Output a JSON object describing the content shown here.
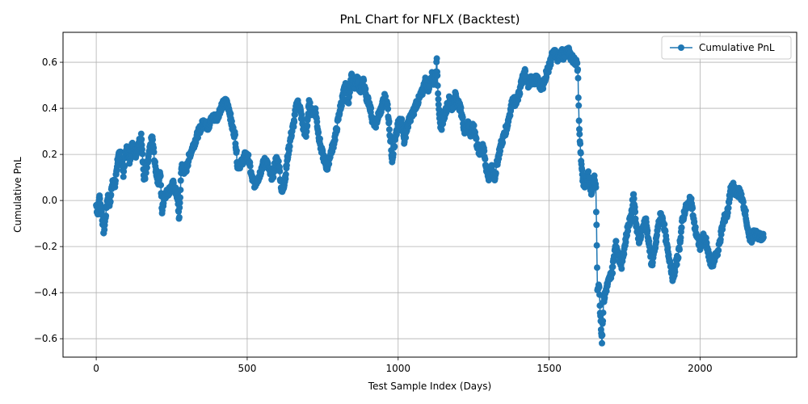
{
  "chart_data": {
    "type": "line",
    "title": "PnL Chart for NFLX (Backtest)",
    "xlabel": "Test Sample Index (Days)",
    "ylabel": "Cumulative PnL",
    "xlim": [
      -110,
      2320
    ],
    "ylim": [
      -0.68,
      0.73
    ],
    "xticks": [
      0,
      500,
      1000,
      1500,
      2000
    ],
    "yticks": [
      -0.6,
      -0.4,
      -0.2,
      0.0,
      0.2,
      0.4,
      0.6
    ],
    "xtick_labels": [
      "0",
      "500",
      "1000",
      "1500",
      "2000"
    ],
    "ytick_labels": [
      "−0.6",
      "−0.4",
      "−0.2",
      "0.0",
      "0.2",
      "0.4",
      "0.6"
    ],
    "grid": true,
    "legend_position": "top-right",
    "color": "#1f77b4",
    "marker": "circle",
    "series": [
      {
        "name": "Cumulative PnL",
        "anchors": [
          [
            0,
            -0.02
          ],
          [
            5,
            -0.06
          ],
          [
            10,
            0.02
          ],
          [
            18,
            -0.05
          ],
          [
            25,
            -0.14
          ],
          [
            30,
            -0.08
          ],
          [
            38,
            0.02
          ],
          [
            45,
            -0.02
          ],
          [
            55,
            0.1
          ],
          [
            62,
            0.06
          ],
          [
            70,
            0.17
          ],
          [
            80,
            0.21
          ],
          [
            90,
            0.12
          ],
          [
            100,
            0.23
          ],
          [
            110,
            0.17
          ],
          [
            120,
            0.25
          ],
          [
            130,
            0.2
          ],
          [
            140,
            0.24
          ],
          [
            150,
            0.28
          ],
          [
            158,
            0.09
          ],
          [
            165,
            0.12
          ],
          [
            175,
            0.2
          ],
          [
            185,
            0.28
          ],
          [
            195,
            0.15
          ],
          [
            205,
            0.08
          ],
          [
            212,
            0.12
          ],
          [
            218,
            -0.05
          ],
          [
            225,
            0.02
          ],
          [
            240,
            0.04
          ],
          [
            255,
            0.07
          ],
          [
            268,
            0.02
          ],
          [
            275,
            -0.08
          ],
          [
            282,
            0.15
          ],
          [
            295,
            0.12
          ],
          [
            310,
            0.2
          ],
          [
            325,
            0.25
          ],
          [
            340,
            0.3
          ],
          [
            355,
            0.34
          ],
          [
            370,
            0.32
          ],
          [
            385,
            0.36
          ],
          [
            400,
            0.36
          ],
          [
            415,
            0.41
          ],
          [
            430,
            0.43
          ],
          [
            440,
            0.4
          ],
          [
            450,
            0.32
          ],
          [
            460,
            0.28
          ],
          [
            468,
            0.15
          ],
          [
            480,
            0.16
          ],
          [
            495,
            0.2
          ],
          [
            505,
            0.18
          ],
          [
            515,
            0.1
          ],
          [
            525,
            0.07
          ],
          [
            538,
            0.1
          ],
          [
            550,
            0.15
          ],
          [
            562,
            0.18
          ],
          [
            575,
            0.12
          ],
          [
            585,
            0.1
          ],
          [
            595,
            0.18
          ],
          [
            605,
            0.16
          ],
          [
            615,
            0.03
          ],
          [
            625,
            0.09
          ],
          [
            635,
            0.2
          ],
          [
            645,
            0.28
          ],
          [
            655,
            0.34
          ],
          [
            665,
            0.43
          ],
          [
            675,
            0.4
          ],
          [
            685,
            0.32
          ],
          [
            695,
            0.28
          ],
          [
            705,
            0.42
          ],
          [
            715,
            0.38
          ],
          [
            725,
            0.4
          ],
          [
            735,
            0.3
          ],
          [
            745,
            0.22
          ],
          [
            755,
            0.18
          ],
          [
            765,
            0.14
          ],
          [
            775,
            0.2
          ],
          [
            785,
            0.24
          ],
          [
            795,
            0.3
          ],
          [
            805,
            0.38
          ],
          [
            815,
            0.44
          ],
          [
            825,
            0.5
          ],
          [
            835,
            0.42
          ],
          [
            845,
            0.55
          ],
          [
            855,
            0.48
          ],
          [
            865,
            0.53
          ],
          [
            875,
            0.47
          ],
          [
            885,
            0.52
          ],
          [
            895,
            0.45
          ],
          [
            905,
            0.42
          ],
          [
            915,
            0.35
          ],
          [
            925,
            0.33
          ],
          [
            935,
            0.37
          ],
          [
            945,
            0.4
          ],
          [
            955,
            0.45
          ],
          [
            965,
            0.41
          ],
          [
            972,
            0.3
          ],
          [
            980,
            0.18
          ],
          [
            990,
            0.26
          ],
          [
            1000,
            0.33
          ],
          [
            1010,
            0.36
          ],
          [
            1020,
            0.26
          ],
          [
            1030,
            0.32
          ],
          [
            1040,
            0.36
          ],
          [
            1050,
            0.38
          ],
          [
            1060,
            0.42
          ],
          [
            1070,
            0.44
          ],
          [
            1080,
            0.47
          ],
          [
            1090,
            0.52
          ],
          [
            1100,
            0.48
          ],
          [
            1110,
            0.55
          ],
          [
            1120,
            0.5
          ],
          [
            1128,
            0.6
          ],
          [
            1133,
            0.45
          ],
          [
            1140,
            0.3
          ],
          [
            1150,
            0.36
          ],
          [
            1160,
            0.4
          ],
          [
            1170,
            0.44
          ],
          [
            1180,
            0.4
          ],
          [
            1190,
            0.46
          ],
          [
            1200,
            0.42
          ],
          [
            1210,
            0.38
          ],
          [
            1220,
            0.3
          ],
          [
            1230,
            0.35
          ],
          [
            1240,
            0.28
          ],
          [
            1250,
            0.33
          ],
          [
            1260,
            0.25
          ],
          [
            1270,
            0.2
          ],
          [
            1280,
            0.25
          ],
          [
            1290,
            0.15
          ],
          [
            1300,
            0.1
          ],
          [
            1310,
            0.14
          ],
          [
            1320,
            0.1
          ],
          [
            1330,
            0.18
          ],
          [
            1340,
            0.24
          ],
          [
            1350,
            0.28
          ],
          [
            1360,
            0.32
          ],
          [
            1370,
            0.38
          ],
          [
            1380,
            0.44
          ],
          [
            1390,
            0.42
          ],
          [
            1400,
            0.46
          ],
          [
            1410,
            0.52
          ],
          [
            1420,
            0.56
          ],
          [
            1430,
            0.5
          ],
          [
            1440,
            0.53
          ],
          [
            1450,
            0.51
          ],
          [
            1460,
            0.54
          ],
          [
            1470,
            0.5
          ],
          [
            1480,
            0.49
          ],
          [
            1490,
            0.55
          ],
          [
            1500,
            0.58
          ],
          [
            1510,
            0.63
          ],
          [
            1520,
            0.64
          ],
          [
            1530,
            0.61
          ],
          [
            1540,
            0.65
          ],
          [
            1550,
            0.62
          ],
          [
            1560,
            0.66
          ],
          [
            1570,
            0.63
          ],
          [
            1580,
            0.61
          ],
          [
            1590,
            0.6
          ],
          [
            1595,
            0.57
          ],
          [
            1600,
            0.3
          ],
          [
            1605,
            0.2
          ],
          [
            1610,
            0.1
          ],
          [
            1615,
            0.05
          ],
          [
            1620,
            0.08
          ],
          [
            1630,
            0.12
          ],
          [
            1640,
            0.03
          ],
          [
            1650,
            0.1
          ],
          [
            1655,
            0.05
          ],
          [
            1660,
            -0.38
          ],
          [
            1665,
            -0.36
          ],
          [
            1670,
            -0.5
          ],
          [
            1675,
            -0.61
          ],
          [
            1680,
            -0.44
          ],
          [
            1690,
            -0.38
          ],
          [
            1700,
            -0.34
          ],
          [
            1710,
            -0.3
          ],
          [
            1720,
            -0.18
          ],
          [
            1730,
            -0.24
          ],
          [
            1740,
            -0.28
          ],
          [
            1750,
            -0.2
          ],
          [
            1760,
            -0.12
          ],
          [
            1770,
            -0.08
          ],
          [
            1780,
            0.03
          ],
          [
            1785,
            -0.06
          ],
          [
            1790,
            -0.12
          ],
          [
            1800,
            -0.18
          ],
          [
            1810,
            -0.12
          ],
          [
            1820,
            -0.08
          ],
          [
            1830,
            -0.18
          ],
          [
            1840,
            -0.28
          ],
          [
            1850,
            -0.22
          ],
          [
            1860,
            -0.12
          ],
          [
            1870,
            -0.06
          ],
          [
            1880,
            -0.1
          ],
          [
            1890,
            -0.2
          ],
          [
            1900,
            -0.26
          ],
          [
            1910,
            -0.34
          ],
          [
            1920,
            -0.28
          ],
          [
            1930,
            -0.22
          ],
          [
            1940,
            -0.1
          ],
          [
            1950,
            -0.04
          ],
          [
            1960,
            -0.02
          ],
          [
            1970,
            0.01
          ],
          [
            1980,
            -0.1
          ],
          [
            1990,
            -0.16
          ],
          [
            2000,
            -0.2
          ],
          [
            2010,
            -0.16
          ],
          [
            2020,
            -0.18
          ],
          [
            2030,
            -0.25
          ],
          [
            2040,
            -0.28
          ],
          [
            2050,
            -0.24
          ],
          [
            2060,
            -0.22
          ],
          [
            2070,
            -0.14
          ],
          [
            2080,
            -0.08
          ],
          [
            2090,
            -0.06
          ],
          [
            2100,
            0.04
          ],
          [
            2110,
            0.06
          ],
          [
            2120,
            0.02
          ],
          [
            2130,
            0.04
          ],
          [
            2140,
            0.0
          ],
          [
            2150,
            -0.05
          ],
          [
            2160,
            -0.15
          ],
          [
            2170,
            -0.17
          ],
          [
            2180,
            -0.14
          ],
          [
            2190,
            -0.15
          ],
          [
            2200,
            -0.16
          ],
          [
            2210,
            -0.16
          ]
        ]
      }
    ]
  }
}
